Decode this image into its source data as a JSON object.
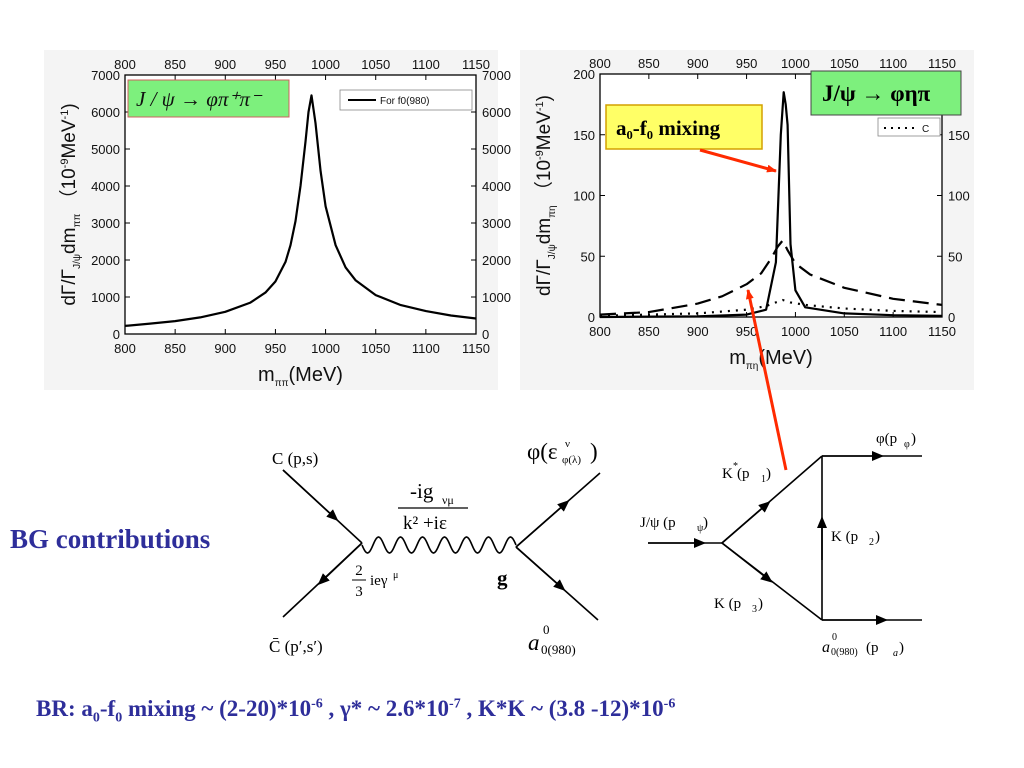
{
  "chart_data": [
    {
      "type": "line",
      "title": "",
      "process_label": "J / ψ → φπ⁺π⁻",
      "xlabel": "m",
      "xlabel_sub": "ππ",
      "xlabel_unit": "(MeV)",
      "ylabel_parts": [
        "dΓ/Γ",
        "J/ψ",
        "dm",
        "ππ",
        " （10",
        "-9",
        "MeV",
        "-1",
        ")"
      ],
      "xlim": [
        800,
        1150
      ],
      "ylim": [
        0,
        7000
      ],
      "xticks": [
        800,
        850,
        900,
        950,
        1000,
        1050,
        1100,
        1150
      ],
      "yticks": [
        0,
        1000,
        2000,
        3000,
        4000,
        5000,
        6000,
        7000
      ],
      "yticks_right": [
        0,
        1000,
        2000,
        3000,
        4000,
        5000,
        6000,
        7000
      ],
      "legend": {
        "placement": "top-right",
        "entries": [
          "For  f0(980)"
        ]
      },
      "series": [
        {
          "name": "For  f0(980)",
          "style": "solid",
          "x": [
            800,
            825,
            850,
            875,
            900,
            925,
            940,
            950,
            960,
            965,
            970,
            975,
            980,
            983,
            986,
            990,
            995,
            1000,
            1010,
            1020,
            1030,
            1050,
            1075,
            1100,
            1125,
            1150
          ],
          "y": [
            220,
            280,
            350,
            450,
            600,
            850,
            1120,
            1420,
            1950,
            2400,
            3050,
            4000,
            5200,
            6000,
            6450,
            5700,
            4400,
            3450,
            2400,
            1800,
            1450,
            1050,
            780,
            620,
            500,
            420
          ]
        }
      ]
    },
    {
      "type": "line",
      "title": "",
      "process_label": "J/ψ → φηπ",
      "annotation": "a₀-f₀ mixing",
      "xlabel": "m",
      "xlabel_sub": "πη",
      "xlabel_unit": "(MeV)",
      "ylabel_parts": [
        "dΓ/Γ",
        "J/ψ",
        "dm",
        "πη",
        " （10",
        "-9",
        "MeV",
        "-1",
        ")"
      ],
      "xlim": [
        800,
        1150
      ],
      "ylim": [
        0,
        200
      ],
      "xticks": [
        800,
        850,
        900,
        950,
        1000,
        1050,
        1100,
        1150
      ],
      "yticks": [
        0,
        50,
        100,
        150,
        200
      ],
      "yticks_right": [
        0,
        50,
        100,
        150
      ],
      "legend": {
        "placement": "top-right",
        "entries": [
          "C"
        ]
      },
      "series": [
        {
          "style": "solid",
          "x": [
            800,
            900,
            950,
            970,
            980,
            985,
            988,
            990,
            992,
            995,
            1000,
            1010,
            1050,
            1100,
            1150
          ],
          "y": [
            0,
            0.5,
            2,
            6,
            45,
            150,
            185,
            175,
            158,
            60,
            22,
            8,
            3,
            1.5,
            1
          ]
        },
        {
          "style": "dashed",
          "x": [
            800,
            850,
            900,
            925,
            950,
            965,
            975,
            982,
            987,
            992,
            1000,
            1015,
            1050,
            1100,
            1150
          ],
          "y": [
            2,
            4,
            11,
            17,
            27,
            36,
            48,
            58,
            63,
            55,
            44,
            35,
            24,
            15,
            10
          ]
        },
        {
          "name": "C",
          "style": "dotted",
          "x": [
            800,
            900,
            950,
            970,
            980,
            987,
            995,
            1010,
            1050,
            1100,
            1150
          ],
          "y": [
            1,
            3,
            6,
            9,
            12,
            14,
            12,
            10,
            7,
            5,
            4
          ]
        }
      ]
    }
  ],
  "diagrams": {
    "photon": {
      "c_in": "C (p,s)",
      "c_out": "C̄ (p′,s′)",
      "vertex_factor": "ieγ",
      "vertex_factor_frac_num": "2",
      "vertex_factor_frac_den": "3",
      "vertex_factor_sup": "μ",
      "propagator_num": "-ig",
      "propagator_num_sub": "νμ",
      "propagator_den": "k² +iε",
      "phi": "φ(ε",
      "phi_sup": "ν",
      "phi_sub": "φ(λ)",
      "phi_close": ")",
      "coupling": "g",
      "a0": "a",
      "a0_sup": "0",
      "a0_sub": "0(980)"
    },
    "triangle": {
      "jpsi": "J/ψ  (p",
      "jpsi_sub": "ψ",
      "kstar": "K",
      "kstar_rest": " (p",
      "kstar_sub": "1",
      "k2": "K  (p",
      "k2_sub": "2",
      "k3": "K  (p",
      "k3_sub": "3",
      "phi": "φ(p",
      "phi_sub": "φ",
      "a0": "a",
      "a0_sup": "0",
      "a0_sub": "0(980)",
      "a0_mom": "  (p",
      "a0_mom_sub": "a"
    }
  },
  "bg_label": "BG contributions",
  "branching": {
    "prefix": "BR: a",
    "s0": "0",
    "mid1": "-f",
    "s1": "0",
    "mid2": " mixing  ~ (2-20)*10",
    "e1": "-6",
    "mid3": " ,   γ*  ~ 2.6*10",
    "e2": "-7",
    "mid4": " ,  K*K ~ (3.8 -12)*10",
    "e3": "-6"
  },
  "colors": {
    "label_box": "#7df07d",
    "annotation_box": "#ffff66",
    "annotation_border": "#d4a000",
    "arrow": "#ff2a00",
    "text_blue": "#2e2e9a",
    "panel_bg": "#f4f4f4"
  }
}
